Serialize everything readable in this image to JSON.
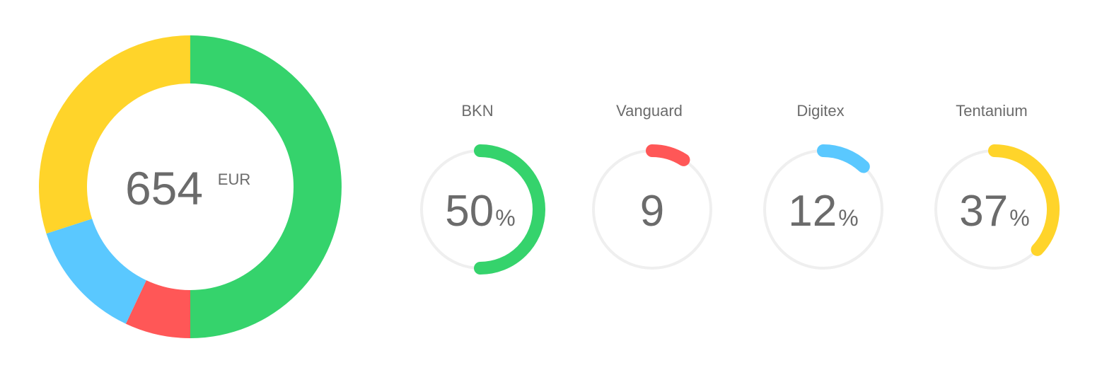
{
  "chart_data": [
    {
      "type": "pie",
      "variant": "donut",
      "center_value": "654",
      "center_unit": "EUR",
      "slices": [
        {
          "value": 50,
          "color": "#35D36C"
        },
        {
          "value": 7,
          "color": "#FF5757"
        },
        {
          "value": 13,
          "color": "#5AC8FF"
        },
        {
          "value": 30,
          "color": "#FFD42A"
        }
      ]
    },
    {
      "type": "gauge",
      "items": [
        {
          "title": "BKN",
          "value": 50,
          "number": "50",
          "unit": "%",
          "color": "#35D36C"
        },
        {
          "title": "Vanguard",
          "value": 9,
          "number": "9",
          "unit": "",
          "color": "#FF5757"
        },
        {
          "title": "Digitex",
          "value": 12,
          "number": "12",
          "unit": "%",
          "color": "#5AC8FF"
        },
        {
          "title": "Tentanium",
          "value": 37,
          "number": "37",
          "unit": "%",
          "color": "#FFD42A"
        }
      ]
    }
  ],
  "colors": {
    "text": "#6B6B6B",
    "track": "#EFEFEF"
  }
}
